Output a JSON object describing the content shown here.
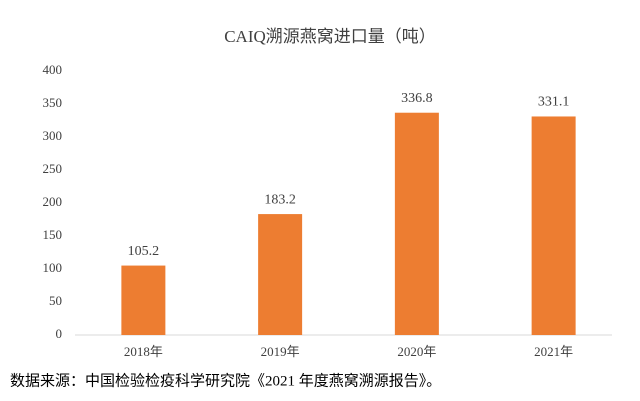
{
  "chart_data": {
    "type": "bar",
    "title": "CAIQ溯源燕窝进口量（吨）",
    "categories": [
      "2018年",
      "2019年",
      "2020年",
      "2021年"
    ],
    "values": [
      105.2,
      183.2,
      336.8,
      331.1
    ],
    "color": "#ed7d31",
    "ylim": [
      0,
      400
    ],
    "yticks": [
      0,
      50,
      100,
      150,
      200,
      250,
      300,
      350,
      400
    ],
    "grid": false,
    "data_labels": true
  },
  "source": "数据来源：中国检验检疫科学研究院《2021 年度燕窝溯源报告》。"
}
